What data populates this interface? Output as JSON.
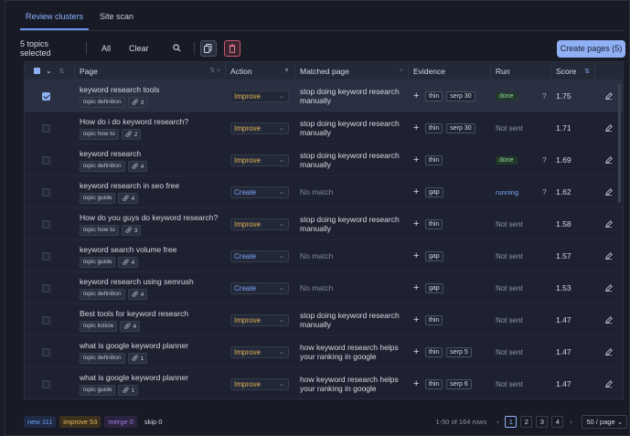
{
  "tabs": [
    {
      "label": "Review clusters",
      "active": true
    },
    {
      "label": "Site scan",
      "active": false
    }
  ],
  "side_handle": "Site scan",
  "toolbar": {
    "selected_count": "5 topics selected",
    "all_label": "All",
    "clear_label": "Clear",
    "create_label": "Create pages (5)"
  },
  "columns": {
    "page": "Page",
    "action": "Action",
    "matched": "Matched page",
    "evidence": "Evidence",
    "run": "Run",
    "score": "Score"
  },
  "rows": [
    {
      "selected": true,
      "title": "keyword research tools",
      "tags": [
        "topic definition",
        "3"
      ],
      "action": "Improve",
      "matched": "stop doing keyword research manually",
      "evidence": [
        "thin",
        "serp 30"
      ],
      "run": "done",
      "score": "1.75"
    },
    {
      "selected": false,
      "title": "How do i do keyword research?",
      "tags": [
        "topic how to",
        "2"
      ],
      "action": "Improve",
      "matched": "stop doing keyword research manually",
      "evidence": [
        "thin",
        "serp 30"
      ],
      "run": "Not sent",
      "score": "1.71"
    },
    {
      "selected": false,
      "title": "keyword research",
      "tags": [
        "topic definition",
        "4"
      ],
      "action": "Improve",
      "matched": "stop doing keyword research manually",
      "evidence": [
        "thin"
      ],
      "run": "done",
      "score": "1.69"
    },
    {
      "selected": false,
      "title": "keyword research in seo free",
      "tags": [
        "topic guide",
        "4"
      ],
      "action": "Create",
      "matched": "No match",
      "evidence": [
        "gap"
      ],
      "run": "running",
      "score": "1.62"
    },
    {
      "selected": false,
      "title": "How do you guys do keyword research?",
      "tags": [
        "topic how to",
        "3"
      ],
      "action": "Improve",
      "matched": "stop doing keyword research manually",
      "evidence": [
        "thin"
      ],
      "run": "Not sent",
      "score": "1.58"
    },
    {
      "selected": false,
      "title": "keyword search volume free",
      "tags": [
        "topic guide",
        "4"
      ],
      "action": "Create",
      "matched": "No match",
      "evidence": [
        "gap"
      ],
      "run": "Not sent",
      "score": "1.57"
    },
    {
      "selected": false,
      "title": "keyword research using semrush",
      "tags": [
        "topic definition",
        "4"
      ],
      "action": "Create",
      "matched": "No match",
      "evidence": [
        "gap"
      ],
      "run": "Not sent",
      "score": "1.53"
    },
    {
      "selected": false,
      "title": "Best tools for keyword research",
      "tags": [
        "topic listicle",
        "4"
      ],
      "action": "Improve",
      "matched": "stop doing keyword research manually",
      "evidence": [
        "thin"
      ],
      "run": "Not sent",
      "score": "1.47"
    },
    {
      "selected": false,
      "title": "what is google keyword planner",
      "tags": [
        "topic definition",
        "1"
      ],
      "action": "Improve",
      "matched": "how keyword research helps your ranking in google",
      "evidence": [
        "thin",
        "serp 5"
      ],
      "run": "Not sent",
      "score": "1.47"
    },
    {
      "selected": false,
      "title": "what is google keyword planner",
      "tags": [
        "topic guide",
        "1"
      ],
      "action": "Improve",
      "matched": "how keyword research helps your ranking in google",
      "evidence": [
        "thin",
        "serp 6"
      ],
      "run": "Not sent",
      "score": "1.47"
    }
  ],
  "footer": {
    "new": "new 111",
    "improve": "improve 53",
    "merge": "merge 0",
    "skip": "skip 0",
    "rows_text": "1-50 of 164 rows",
    "pages": [
      "1",
      "2",
      "3",
      "4"
    ],
    "current_page": "1",
    "per_page": "50 / page"
  },
  "colors": {
    "accent": "#8fb0f5",
    "improve": "#e7b85a",
    "create": "#7aa2f7",
    "done": "#8fd49b"
  }
}
